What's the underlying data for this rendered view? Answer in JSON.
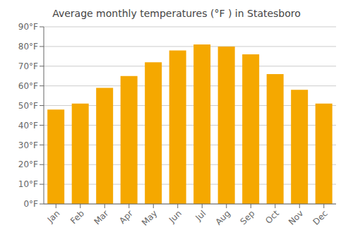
{
  "chart_data": {
    "type": "bar",
    "title": "Average monthly temperatures (°F ) in Statesboro",
    "categories": [
      "Jan",
      "Feb",
      "Mar",
      "Apr",
      "May",
      "Jun",
      "Jul",
      "Aug",
      "Sep",
      "Oct",
      "Nov",
      "Dec"
    ],
    "values": [
      48,
      51,
      59,
      65,
      72,
      78,
      81,
      80,
      76,
      66,
      58,
      51
    ],
    "color": "#F5A800",
    "ylim": [
      0,
      90
    ],
    "yticks": [
      {
        "value": 0,
        "label": "0°F"
      },
      {
        "value": 10,
        "label": "10°F"
      },
      {
        "value": 20,
        "label": "20°F"
      },
      {
        "value": 30,
        "label": "30°F"
      },
      {
        "value": 40,
        "label": "40°F"
      },
      {
        "value": 50,
        "label": "50°F"
      },
      {
        "value": 60,
        "label": "60°F"
      },
      {
        "value": 70,
        "label": "70°F"
      },
      {
        "value": 80,
        "label": "80°F"
      },
      {
        "value": 90,
        "label": "90°F"
      }
    ],
    "grid": true
  }
}
